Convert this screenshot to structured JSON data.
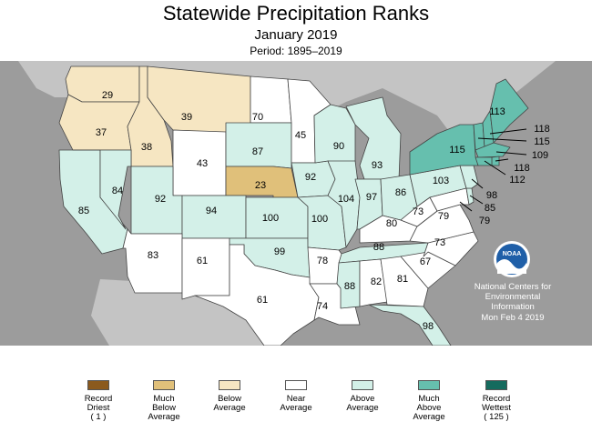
{
  "header": {
    "title": "Statewide Precipitation Ranks",
    "subtitle": "January 2019",
    "period": "Period: 1895–2019"
  },
  "colors": {
    "record_driest": "#8b5a1e",
    "much_below": "#e0c07a",
    "below": "#f6e6c2",
    "near": "#ffffff",
    "above": "#d3f0e8",
    "much_above": "#66bfae",
    "record_wettest": "#156b5e",
    "background": "#9c9c9c",
    "land": "#c4c4c4",
    "border": "#444444"
  },
  "states": {
    "WA": {
      "rank": "29",
      "category": "below"
    },
    "OR": {
      "rank": "37",
      "category": "below"
    },
    "ID": {
      "rank": "38",
      "category": "below"
    },
    "MT": {
      "rank": "39",
      "category": "below"
    },
    "ND": {
      "rank": "70",
      "category": "near"
    },
    "MN": {
      "rank": "45",
      "category": "near"
    },
    "WY": {
      "rank": "43",
      "category": "near"
    },
    "SD": {
      "rank": "87",
      "category": "above"
    },
    "NE": {
      "rank": "23",
      "category": "much_below"
    },
    "CA": {
      "rank": "85",
      "category": "above"
    },
    "NV": {
      "rank": "84",
      "category": "above"
    },
    "UT": {
      "rank": "92",
      "category": "above"
    },
    "CO": {
      "rank": "94",
      "category": "above"
    },
    "KS": {
      "rank": "100",
      "category": "above"
    },
    "IA": {
      "rank": "92",
      "category": "above"
    },
    "WI": {
      "rank": "90",
      "category": "above"
    },
    "MI": {
      "rank": "93",
      "category": "above"
    },
    "IL": {
      "rank": "104",
      "category": "above"
    },
    "MO": {
      "rank": "100",
      "category": "above"
    },
    "IN": {
      "rank": "97",
      "category": "above"
    },
    "OH": {
      "rank": "86",
      "category": "above"
    },
    "PA": {
      "rank": "103",
      "category": "above"
    },
    "NY": {
      "rank": "115",
      "category": "much_above"
    },
    "ME": {
      "rank": "113",
      "category": "much_above"
    },
    "NH": {
      "rank": "118",
      "category": "much_above"
    },
    "VT": {
      "rank": "115",
      "category": "much_above"
    },
    "MA": {
      "rank": "109",
      "category": "much_above"
    },
    "RI": {
      "rank": "118",
      "category": "much_above"
    },
    "CT": {
      "rank": "112",
      "category": "much_above"
    },
    "NJ": {
      "rank": "98",
      "category": "above"
    },
    "DE": {
      "rank": "85",
      "category": "above"
    },
    "MD": {
      "rank": "79",
      "category": "near"
    },
    "AZ": {
      "rank": "83",
      "category": "near"
    },
    "NM": {
      "rank": "61",
      "category": "near"
    },
    "TX": {
      "rank": "61",
      "category": "near"
    },
    "OK": {
      "rank": "99",
      "category": "above"
    },
    "AR": {
      "rank": "78",
      "category": "near"
    },
    "LA": {
      "rank": "74",
      "category": "near"
    },
    "MS": {
      "rank": "88",
      "category": "above"
    },
    "AL": {
      "rank": "82",
      "category": "near"
    },
    "GA": {
      "rank": "81",
      "category": "near"
    },
    "FL": {
      "rank": "98",
      "category": "above"
    },
    "SC": {
      "rank": "67",
      "category": "near"
    },
    "NC": {
      "rank": "73",
      "category": "near"
    },
    "TN": {
      "rank": "88",
      "category": "above"
    },
    "KY": {
      "rank": "80",
      "category": "near"
    },
    "WV": {
      "rank": "73",
      "category": "near"
    },
    "VA": {
      "rank": "79",
      "category": "near"
    }
  },
  "noaa": {
    "logo_text": "NOAA",
    "line1": "National Centers for",
    "line2": "Environmental",
    "line3": "Information",
    "line4": "Mon Feb  4 2019"
  },
  "legend": [
    {
      "label": "Record\nDriest\n( 1 )",
      "category": "record_driest"
    },
    {
      "label": "Much\nBelow\nAverage",
      "category": "much_below"
    },
    {
      "label": "Below\nAverage",
      "category": "below"
    },
    {
      "label": "Near\nAverage",
      "category": "near"
    },
    {
      "label": "Above\nAverage",
      "category": "above"
    },
    {
      "label": "Much\nAbove\nAverage",
      "category": "much_above"
    },
    {
      "label": "Record\nWettest\n( 125 )",
      "category": "record_wettest"
    }
  ]
}
